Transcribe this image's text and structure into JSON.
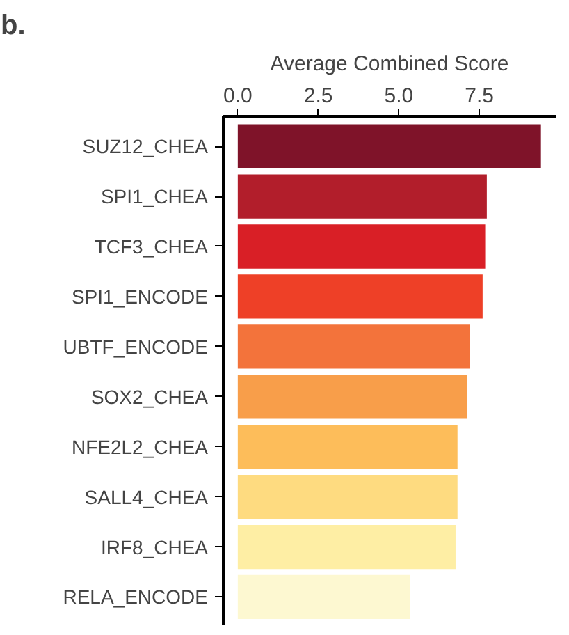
{
  "chart_data": {
    "type": "bar",
    "orientation": "horizontal",
    "title": "b.",
    "xlabel": "Average Combined Score",
    "categories": [
      "SUZ12_CHEA",
      "SPI1_CHEA",
      "TCF3_CHEA",
      "SPI1_ENCODE",
      "UBTF_ENCODE",
      "SOX2_CHEA",
      "NFE2L2_CHEA",
      "SALL4_CHEA",
      "IRF8_CHEA",
      "RELA_ENCODE"
    ],
    "values": [
      9.41,
      7.73,
      7.68,
      7.6,
      7.21,
      7.12,
      6.82,
      6.82,
      6.76,
      5.34
    ],
    "colors": [
      "#7f1329",
      "#b21e2b",
      "#d91f26",
      "#ee4027",
      "#f3733b",
      "#f89e4a",
      "#fdbd5a",
      "#fedb80",
      "#feeea4",
      "#fdf8d1"
    ],
    "xlim": [
      -0.45,
      9.87
    ],
    "xticks": [
      {
        "value": 0,
        "label": "0.0"
      },
      {
        "value": 2.5,
        "label": "2.5"
      },
      {
        "value": 5,
        "label": "5.0"
      },
      {
        "value": 7.5,
        "label": "7.5"
      }
    ],
    "grid": false
  }
}
